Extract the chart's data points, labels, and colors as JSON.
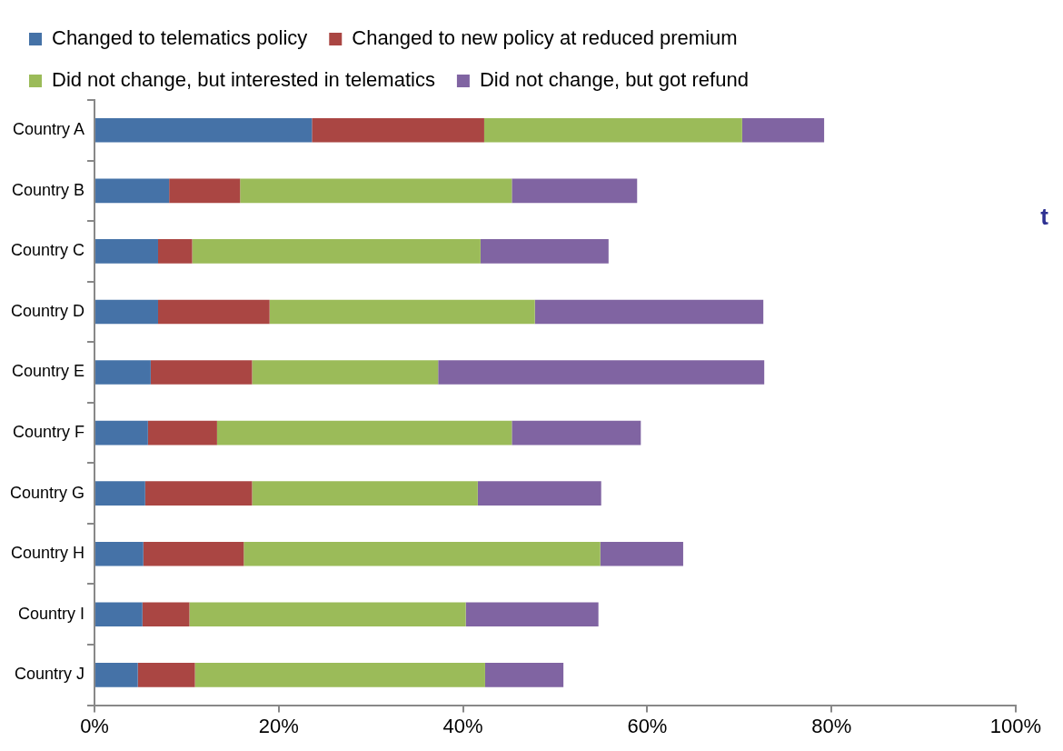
{
  "chart_data": {
    "type": "bar",
    "orientation": "horizontal",
    "stacked": true,
    "legend": "top",
    "grid": false,
    "categories": [
      "Country A",
      "Country B",
      "Country C",
      "Country D",
      "Country E",
      "Country F",
      "Country G",
      "Country H",
      "Country I",
      "Country J"
    ],
    "series": [
      {
        "name": "Changed to telematics policy",
        "color": "#4572a7",
        "values": [
          23.6,
          8.1,
          6.9,
          6.9,
          6.1,
          5.8,
          5.5,
          5.3,
          5.2,
          4.7
        ]
      },
      {
        "name": "Changed to new policy at reduced premium",
        "color": "#aa4643",
        "values": [
          18.7,
          7.7,
          3.7,
          12.1,
          11.0,
          7.5,
          11.6,
          10.9,
          5.1,
          6.2
        ]
      },
      {
        "name": "Did not change, but interested in telematics",
        "color": "#9bbb59",
        "values": [
          28.0,
          29.5,
          31.3,
          28.8,
          20.2,
          32.0,
          24.5,
          38.7,
          30.0,
          31.5
        ]
      },
      {
        "name": "Did not change, but got refund",
        "color": "#8064a2",
        "values": [
          8.9,
          13.6,
          13.9,
          24.8,
          35.4,
          14.0,
          13.4,
          9.0,
          14.4,
          8.5
        ]
      }
    ],
    "xlim": [
      0,
      100
    ],
    "xticks": [
      {
        "value": 0,
        "label": "0%"
      },
      {
        "value": 20,
        "label": "20%"
      },
      {
        "value": 40,
        "label": "40%"
      },
      {
        "value": 60,
        "label": "60%"
      },
      {
        "value": 80,
        "label": "80%"
      },
      {
        "value": 100,
        "label": "100%"
      }
    ],
    "annotations": [
      "t"
    ]
  }
}
